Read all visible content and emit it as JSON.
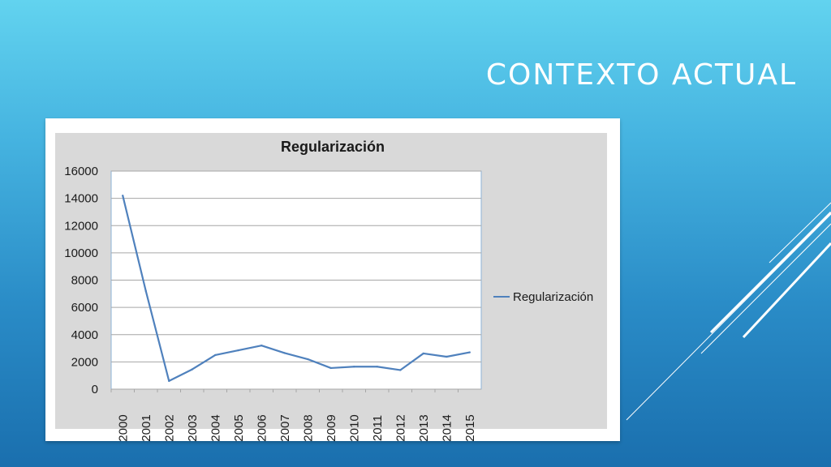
{
  "slide": {
    "title": "CONTEXTO ACTUAL"
  },
  "colors": {
    "series": "#4f81bd",
    "plot_area": "#d9d9d9",
    "gridline": "#a6a6a6"
  },
  "chart_data": {
    "type": "line",
    "title": "Regularización",
    "xlabel": "",
    "ylabel": "",
    "x": [
      "2000",
      "2001",
      "2002",
      "2003",
      "2004",
      "2005",
      "2006",
      "2007",
      "2008",
      "2009",
      "2010",
      "2011",
      "2012",
      "2013",
      "2014",
      "2015"
    ],
    "series": [
      {
        "name": "Regularización",
        "values": [
          14200,
          7200,
          600,
          1450,
          2500,
          2850,
          3200,
          2650,
          2200,
          1550,
          1650,
          1650,
          1400,
          2620,
          2380,
          2700
        ]
      }
    ],
    "ylim": [
      0,
      16000
    ],
    "yticks": [
      0,
      2000,
      4000,
      6000,
      8000,
      10000,
      12000,
      14000,
      16000
    ],
    "grid": true,
    "legend": "right"
  }
}
